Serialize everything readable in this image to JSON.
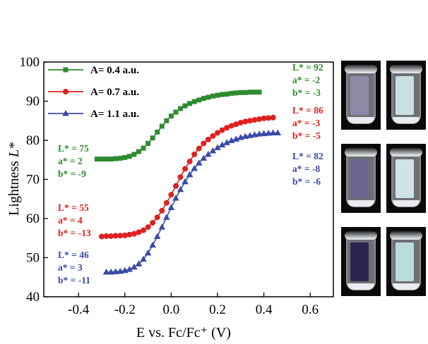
{
  "chart_data": {
    "type": "scatter",
    "xlabel": "E vs. Fc/Fc⁺ (V)",
    "ylabel": "Lightness L*",
    "xlim": [
      -0.55,
      0.7
    ],
    "ylim": [
      40,
      100
    ],
    "xticks": [
      "-0.4",
      "-0.2",
      "0.0",
      "0.2",
      "0.4",
      "0.6"
    ],
    "xtick_values": [
      -0.4,
      -0.2,
      0.0,
      0.2,
      0.4,
      0.6
    ],
    "yticks": [
      "40",
      "50",
      "60",
      "70",
      "80",
      "90",
      "100"
    ],
    "ytick_values": [
      40,
      50,
      60,
      70,
      80,
      90,
      100
    ],
    "grid": false,
    "legend_position": "top-left",
    "series": [
      {
        "name": "A= 0.4 a.u.",
        "color": "#2e8b2e",
        "marker": "square",
        "x": [
          -0.32,
          -0.3,
          -0.28,
          -0.26,
          -0.24,
          -0.22,
          -0.2,
          -0.18,
          -0.16,
          -0.14,
          -0.12,
          -0.1,
          -0.08,
          -0.06,
          -0.04,
          -0.02,
          0.0,
          0.02,
          0.04,
          0.06,
          0.08,
          0.1,
          0.12,
          0.14,
          0.16,
          0.18,
          0.2,
          0.22,
          0.24,
          0.26,
          0.28,
          0.3,
          0.32,
          0.34,
          0.36,
          0.38
        ],
        "y": [
          75.2,
          75.2,
          75.2,
          75.2,
          75.3,
          75.4,
          75.6,
          75.9,
          76.4,
          77.1,
          78.0,
          79.2,
          80.6,
          82.1,
          83.6,
          85.0,
          86.2,
          87.2,
          88.1,
          88.8,
          89.4,
          89.9,
          90.3,
          90.7,
          91.0,
          91.3,
          91.5,
          91.7,
          91.8,
          92.0,
          92.1,
          92.2,
          92.2,
          92.3,
          92.3,
          92.3
        ]
      },
      {
        "name": "A= 0.7 a.u.",
        "color": "#e02020",
        "marker": "circle",
        "x": [
          -0.3,
          -0.28,
          -0.26,
          -0.24,
          -0.22,
          -0.2,
          -0.18,
          -0.16,
          -0.14,
          -0.12,
          -0.1,
          -0.08,
          -0.06,
          -0.04,
          -0.02,
          0.0,
          0.02,
          0.04,
          0.06,
          0.08,
          0.1,
          0.12,
          0.14,
          0.16,
          0.18,
          0.2,
          0.22,
          0.24,
          0.26,
          0.28,
          0.3,
          0.32,
          0.34,
          0.36,
          0.38,
          0.4,
          0.42,
          0.44
        ],
        "y": [
          55.4,
          55.5,
          55.5,
          55.6,
          55.6,
          55.7,
          55.9,
          56.1,
          56.5,
          57.0,
          57.8,
          58.9,
          60.3,
          62.0,
          64.0,
          66.1,
          68.3,
          70.6,
          72.7,
          74.6,
          76.4,
          77.9,
          79.2,
          80.2,
          81.1,
          81.9,
          82.6,
          83.2,
          83.7,
          84.1,
          84.5,
          84.8,
          85.0,
          85.2,
          85.4,
          85.6,
          85.7,
          85.8
        ]
      },
      {
        "name": "A= 1.1 a.u.",
        "color": "#3a4aa8",
        "marker": "triangle",
        "x": [
          -0.28,
          -0.26,
          -0.24,
          -0.22,
          -0.2,
          -0.18,
          -0.16,
          -0.14,
          -0.12,
          -0.1,
          -0.08,
          -0.06,
          -0.04,
          -0.02,
          0.0,
          0.02,
          0.04,
          0.06,
          0.08,
          0.1,
          0.12,
          0.14,
          0.16,
          0.18,
          0.2,
          0.22,
          0.24,
          0.26,
          0.28,
          0.3,
          0.32,
          0.34,
          0.36,
          0.38,
          0.4,
          0.42,
          0.44,
          0.46
        ],
        "y": [
          46.3,
          46.3,
          46.4,
          46.5,
          46.7,
          47.0,
          47.6,
          48.4,
          49.6,
          51.2,
          53.2,
          55.4,
          57.8,
          60.3,
          62.8,
          65.2,
          67.4,
          69.4,
          71.2,
          72.8,
          74.2,
          75.4,
          76.4,
          77.3,
          78.1,
          78.8,
          79.4,
          79.9,
          80.3,
          80.7,
          81.0,
          81.2,
          81.4,
          81.6,
          81.7,
          81.8,
          81.9,
          81.9
        ]
      }
    ],
    "annotations": [
      {
        "lines": [
          "L* = 75",
          "a* = 2",
          "b* = -9"
        ],
        "color": "#2e8b2e"
      },
      {
        "lines": [
          "L* = 55",
          "a* = 4",
          "b* = -13"
        ],
        "color": "#e02020"
      },
      {
        "lines": [
          "L* = 46",
          "a* = 3",
          "b* = -11"
        ],
        "color": "#3a4aa8"
      },
      {
        "lines": [
          "L* = 92",
          "a* = -2",
          "b* = -3"
        ],
        "color": "#2e8b2e"
      },
      {
        "lines": [
          "L* = 86",
          "a* = -3",
          "b* = -5"
        ],
        "color": "#e02020"
      },
      {
        "lines": [
          "L* = 82",
          "a* = -8",
          "b* = -6"
        ],
        "color": "#3a4aa8"
      }
    ]
  },
  "photos": [
    {
      "film_color": "#8e8aa8"
    },
    {
      "film_color": "#c9dfe0"
    },
    {
      "film_color": "#6e6590"
    },
    {
      "film_color": "#cfe3e4"
    },
    {
      "film_color": "#2b2650"
    },
    {
      "film_color": "#b9dcdc"
    }
  ]
}
